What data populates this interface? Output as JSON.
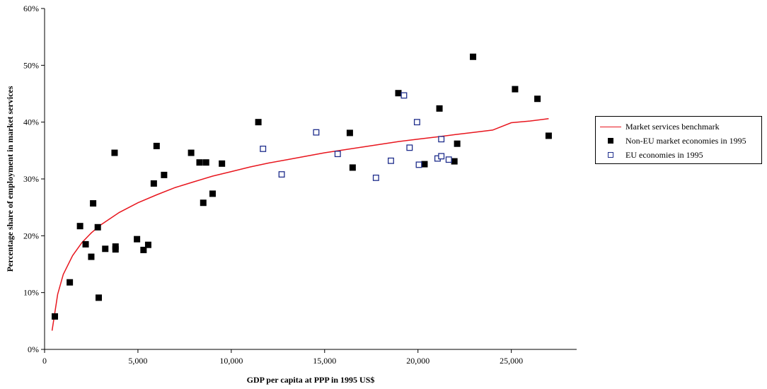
{
  "chart_data": {
    "type": "scatter",
    "title": "",
    "xlabel": "GDP per capita at PPP in 1995 US$",
    "ylabel": "Percentage share of employment in market services",
    "xlim": [
      0,
      28500
    ],
    "ylim": [
      0,
      60
    ],
    "x_ticks": [
      0,
      5000,
      10000,
      15000,
      20000,
      25000
    ],
    "x_tick_labels": [
      "0",
      "5,000",
      "10,000",
      "15,000",
      "20,000",
      "25,000"
    ],
    "y_ticks": [
      0,
      10,
      20,
      30,
      40,
      50,
      60
    ],
    "y_tick_labels": [
      "0%",
      "10%",
      "20%",
      "30%",
      "40%",
      "50%",
      "60%"
    ],
    "grid": false,
    "legend_position": "right",
    "legend": [
      "Market services benchmark",
      "Non-EU market economies in 1995",
      "EU economies in 1995"
    ],
    "colors": {
      "benchmark": "#e8161e",
      "non_eu": "#000000",
      "eu": "#1f2e8c"
    },
    "series": [
      {
        "name": "Market services benchmark",
        "kind": "line",
        "x": [
          400,
          700,
          1000,
          1500,
          2000,
          2500,
          3000,
          4000,
          5000,
          6000,
          7000,
          8000,
          9000,
          10000,
          11000,
          12000,
          13000,
          14000,
          15000,
          16000,
          17000,
          18000,
          19000,
          20000,
          21000,
          22000,
          23000,
          24000,
          25000,
          26000,
          27000
        ],
        "y": [
          3.3,
          9.7,
          13.2,
          16.5,
          18.8,
          20.5,
          21.9,
          24.1,
          25.8,
          27.2,
          28.5,
          29.5,
          30.5,
          31.3,
          32.1,
          32.8,
          33.4,
          34.0,
          34.6,
          35.1,
          35.6,
          36.1,
          36.6,
          37.0,
          37.4,
          37.8,
          38.2,
          38.6,
          39.9,
          40.2,
          40.6
        ]
      },
      {
        "name": "Non-EU market economies in 1995",
        "kind": "filled-square",
        "points": [
          [
            550,
            5.8
          ],
          [
            1350,
            11.8
          ],
          [
            1900,
            21.7
          ],
          [
            2200,
            18.5
          ],
          [
            2500,
            16.3
          ],
          [
            2600,
            25.7
          ],
          [
            2850,
            21.5
          ],
          [
            2900,
            9.1
          ],
          [
            3250,
            17.7
          ],
          [
            3750,
            34.6
          ],
          [
            3800,
            18.1
          ],
          [
            3800,
            17.6
          ],
          [
            4950,
            19.4
          ],
          [
            5300,
            17.5
          ],
          [
            5550,
            18.4
          ],
          [
            5850,
            29.2
          ],
          [
            6000,
            35.8
          ],
          [
            6400,
            30.7
          ],
          [
            7850,
            34.6
          ],
          [
            8300,
            32.9
          ],
          [
            8500,
            25.8
          ],
          [
            8650,
            32.9
          ],
          [
            9000,
            27.4
          ],
          [
            9500,
            32.7
          ],
          [
            11450,
            40.0
          ],
          [
            16350,
            38.1
          ],
          [
            16500,
            32.0
          ],
          [
            18950,
            45.1
          ],
          [
            20350,
            32.6
          ],
          [
            21150,
            42.4
          ],
          [
            21950,
            33.1
          ],
          [
            22100,
            36.2
          ],
          [
            22950,
            51.5
          ],
          [
            25200,
            45.8
          ],
          [
            26400,
            44.1
          ],
          [
            27000,
            37.6
          ]
        ]
      },
      {
        "name": "EU economies in 1995",
        "kind": "open-square",
        "points": [
          [
            11700,
            35.3
          ],
          [
            12700,
            30.8
          ],
          [
            14550,
            38.2
          ],
          [
            15700,
            34.4
          ],
          [
            17750,
            30.2
          ],
          [
            18550,
            33.2
          ],
          [
            19250,
            44.7
          ],
          [
            19550,
            35.5
          ],
          [
            19950,
            40.0
          ],
          [
            20050,
            32.5
          ],
          [
            21050,
            33.6
          ],
          [
            21250,
            37.0
          ],
          [
            21250,
            34.0
          ],
          [
            21650,
            33.4
          ]
        ]
      }
    ]
  }
}
